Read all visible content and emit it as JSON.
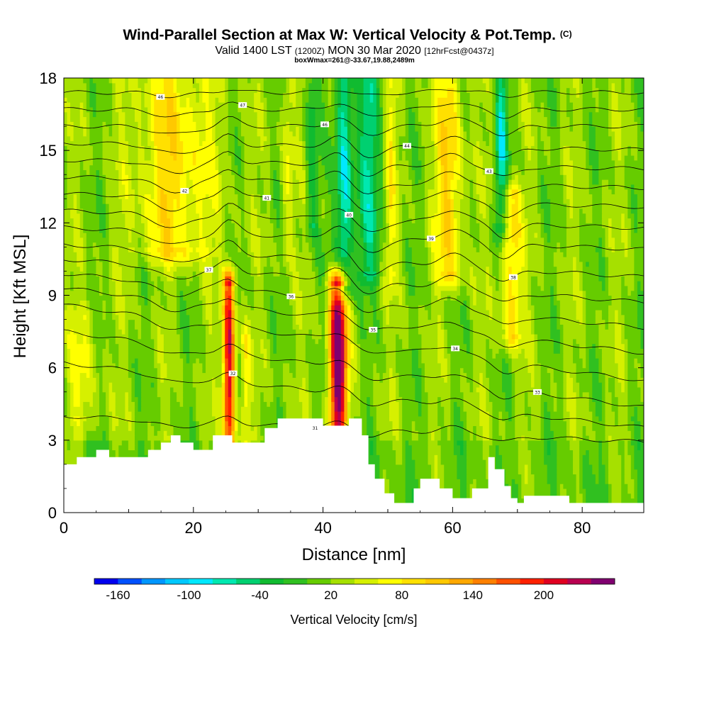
{
  "chart_data": {
    "type": "heatmap",
    "title": "Wind-Parallel Section at Max W: Vertical Velocity & Pot.Temp.",
    "title_mark": "(C)",
    "subtitle_parts": [
      "Valid 1400 LST ",
      "(1200Z)",
      " MON 30 Mar 2020 ",
      "[12hrFcst@0437z]"
    ],
    "box_text": "boxWmax=261@-33.67,19.88,2489m",
    "xlabel": "Distance [nm]",
    "ylabel": "Height [Kft MSL]",
    "xlim": [
      0,
      89.5
    ],
    "ylim": [
      0,
      18
    ],
    "xticks": [
      0,
      20,
      40,
      60,
      80
    ],
    "yticks": [
      0,
      3,
      6,
      9,
      12,
      15,
      18
    ],
    "colorbar": {
      "label": "Vertical Velocity [cm/s]",
      "ticks": [
        -160,
        -100,
        -40,
        20,
        80,
        140,
        200
      ],
      "levels": [
        -180,
        -160,
        -140,
        -120,
        -100,
        -80,
        -60,
        -40,
        -20,
        0,
        20,
        40,
        60,
        80,
        100,
        120,
        140,
        160,
        180,
        200,
        220,
        240
      ],
      "colors": [
        "#0000ee",
        "#0050ff",
        "#0096ff",
        "#00c8ff",
        "#00e8ff",
        "#00e8b0",
        "#00d070",
        "#10bb30",
        "#30c020",
        "#66cc00",
        "#a6e000",
        "#d6f000",
        "#ffff00",
        "#ffe000",
        "#ffc800",
        "#ffa800",
        "#ff8000",
        "#ff5000",
        "#ff2000",
        "#e00020",
        "#b80050",
        "#800070"
      ]
    },
    "bands": [
      {
        "center": 17,
        "width": 6,
        "amp": 70,
        "top": 18,
        "bottom": 11,
        "name": "upper-updraft-left"
      },
      {
        "center": 25.5,
        "width": 0.9,
        "amp": 210,
        "top": 9.4,
        "bottom": 3,
        "name": "updraft-25nm"
      },
      {
        "center": 28,
        "width": 0.7,
        "amp": 55,
        "top": 7,
        "bottom": 3,
        "name": "updraft-28nm"
      },
      {
        "center": 42.3,
        "width": 1.3,
        "amp": 261,
        "top": 9.3,
        "bottom": 3.6,
        "name": "max-updraft-42nm"
      },
      {
        "center": 43.3,
        "width": 1.3,
        "amp": -110,
        "top": 18,
        "bottom": 9.5,
        "name": "downdraft-43nm"
      },
      {
        "center": 47,
        "width": 1.8,
        "amp": -70,
        "top": 18,
        "bottom": 10,
        "name": "downdraft-47nm"
      },
      {
        "center": 38.3,
        "width": 0.9,
        "amp": -55,
        "top": 18,
        "bottom": 12,
        "name": "downdraft-38nm"
      },
      {
        "center": 59.5,
        "width": 2.0,
        "amp": 85,
        "top": 18,
        "bottom": 10,
        "name": "updraft-60nm"
      },
      {
        "center": 69,
        "width": 1.6,
        "amp": 80,
        "top": 13,
        "bottom": 7.5,
        "name": "updraft-69nm"
      },
      {
        "center": 67.5,
        "width": 0.9,
        "amp": -85,
        "top": 18,
        "bottom": 12,
        "name": "downdraft-67nm"
      },
      {
        "center": 50.5,
        "width": 0.8,
        "amp": 45,
        "top": 18,
        "bottom": 10,
        "name": "updraft-50nm"
      },
      {
        "center": 34.5,
        "width": 1.0,
        "amp": 40,
        "top": 18,
        "bottom": 11,
        "name": "updraft-34nm"
      },
      {
        "center": 3,
        "width": 2.5,
        "amp": 35,
        "top": 8,
        "bottom": 4,
        "name": "updraft-3nm"
      }
    ],
    "terrain": {
      "x": [
        0,
        2,
        2,
        5,
        5,
        7,
        7,
        13,
        13,
        15,
        15,
        16.5,
        16.5,
        18,
        18,
        20,
        20,
        23,
        23,
        26,
        26,
        31,
        31,
        33,
        33,
        40,
        40,
        44,
        44,
        46,
        46,
        47,
        47,
        48,
        48,
        49.5,
        49.5,
        51,
        51,
        54,
        54,
        55,
        55,
        58,
        58,
        60,
        60,
        63,
        63,
        65.5,
        65.5,
        66.5,
        66.5,
        68,
        68,
        69,
        69,
        70,
        70,
        71,
        71,
        78,
        78,
        89.5
      ],
      "y": [
        2.0,
        2.0,
        2.3,
        2.3,
        2.6,
        2.6,
        2.3,
        2.3,
        2.6,
        2.6,
        2.9,
        2.9,
        3.2,
        3.2,
        2.9,
        2.9,
        2.6,
        2.6,
        3.2,
        3.2,
        2.9,
        2.9,
        3.5,
        3.5,
        3.9,
        3.9,
        3.6,
        3.6,
        3.9,
        3.9,
        3.2,
        3.2,
        2.0,
        2.0,
        1.4,
        1.4,
        0.8,
        0.8,
        0.4,
        0.4,
        1.0,
        1.0,
        1.4,
        1.4,
        1.0,
        1.0,
        0.6,
        0.6,
        1.0,
        1.0,
        2.3,
        2.3,
        1.8,
        1.8,
        1.1,
        1.1,
        0.6,
        0.6,
        0.4,
        0.4,
        0.7,
        0.7,
        0.4,
        0.4
      ]
    },
    "theta_lines": [
      {
        "y_left": 17.4,
        "slope": 0.0,
        "pert": 0.15,
        "label": "46"
      },
      {
        "y_left": 16.7,
        "slope": 0.0,
        "pert": 0.3,
        "label": "47"
      },
      {
        "y_left": 16.0,
        "slope": 0.0,
        "pert": 0.35,
        "label": "46"
      },
      {
        "y_left": 15.3,
        "slope": -0.003,
        "pert": 0.4,
        "label": "44"
      },
      {
        "y_left": 14.6,
        "slope": -0.004,
        "pert": 0.45,
        "label": "43"
      },
      {
        "y_left": 13.9,
        "slope": -0.005,
        "pert": 0.5,
        "label": "42"
      },
      {
        "y_left": 13.2,
        "slope": -0.006,
        "pert": 0.55,
        "label": "41"
      },
      {
        "y_left": 12.5,
        "slope": -0.008,
        "pert": 0.55,
        "label": "40"
      },
      {
        "y_left": 11.8,
        "slope": -0.01,
        "pert": 0.55,
        "label": "39"
      },
      {
        "y_left": 11.1,
        "slope": -0.015,
        "pert": 0.5,
        "label": "38"
      },
      {
        "y_left": 10.5,
        "slope": -0.02,
        "pert": 0.45,
        "label": "37"
      },
      {
        "y_left": 9.9,
        "slope": -0.025,
        "pert": 0.45,
        "label": "36"
      },
      {
        "y_left": 9.3,
        "slope": -0.03,
        "pert": 0.4,
        "label": "35"
      },
      {
        "y_left": 8.6,
        "slope": -0.035,
        "pert": 0.4,
        "label": "34"
      },
      {
        "y_left": 7.5,
        "slope": -0.035,
        "pert": 0.35,
        "label": "33"
      },
      {
        "y_left": 6.2,
        "slope": -0.03,
        "pert": 0.3,
        "label": "32"
      },
      {
        "y_left": 4.0,
        "slope": -0.012,
        "pert": 0.25,
        "label": "31"
      }
    ]
  }
}
